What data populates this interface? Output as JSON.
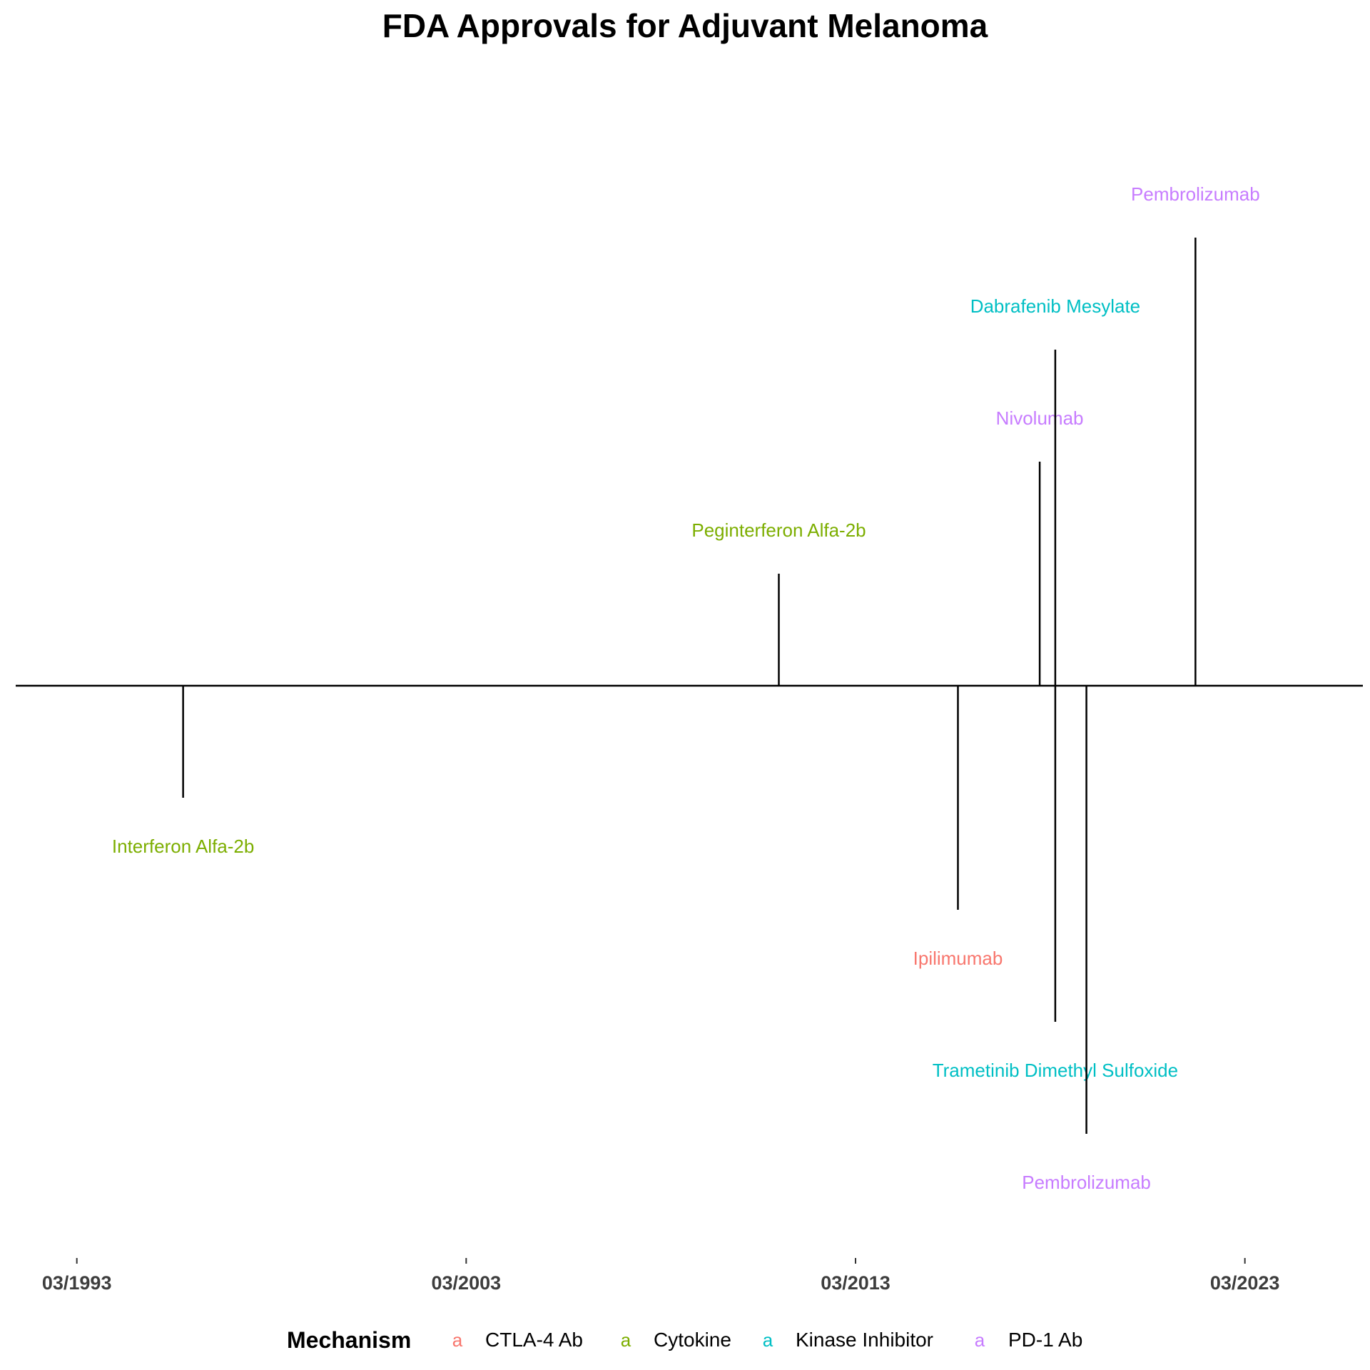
{
  "chart_data": {
    "type": "timeline",
    "title": "FDA Approvals for Adjuvant Melanoma",
    "x_ticks": [
      "03/1993",
      "03/2003",
      "03/2013",
      "03/2023"
    ],
    "x_tick_years": [
      1993.17,
      2003.17,
      2013.17,
      2023.17
    ],
    "xlim": [
      1991.6,
      2026.2
    ],
    "ylim": [
      -5,
      5
    ],
    "grid": false,
    "events": [
      {
        "label": "Interferon Alfa-2b",
        "mechanism": "Cytokine",
        "year": 1995.9,
        "height": -1
      },
      {
        "label": "Peginterferon Alfa-2b",
        "mechanism": "Cytokine",
        "year": 2011.2,
        "height": 1
      },
      {
        "label": "Ipilimumab",
        "mechanism": "CTLA-4 Ab",
        "year": 2015.8,
        "height": -2
      },
      {
        "label": "Nivolumab",
        "mechanism": "PD-1 Ab",
        "year": 2017.9,
        "height": 2
      },
      {
        "label": "Dabrafenib Mesylate",
        "mechanism": "Kinase Inhibitor",
        "year": 2018.3,
        "height": 3
      },
      {
        "label": "Trametinib Dimethyl Sulfoxide",
        "mechanism": "Kinase Inhibitor",
        "year": 2018.3,
        "height": -3
      },
      {
        "label": "Pembrolizumab",
        "mechanism": "PD-1 Ab",
        "year": 2019.1,
        "height": -4
      },
      {
        "label": "Pembrolizumab",
        "mechanism": "PD-1 Ab",
        "year": 2021.9,
        "height": 4
      }
    ],
    "legend": {
      "title": "Mechanism",
      "placement": "bottom",
      "key_glyph": "a",
      "items": [
        {
          "name": "CTLA-4 Ab",
          "color": "#F8766D"
        },
        {
          "name": "Cytokine",
          "color": "#7CAE00"
        },
        {
          "name": "Kinase Inhibitor",
          "color": "#00BFC4"
        },
        {
          "name": "PD-1 Ab",
          "color": "#C77CFF"
        }
      ]
    }
  }
}
